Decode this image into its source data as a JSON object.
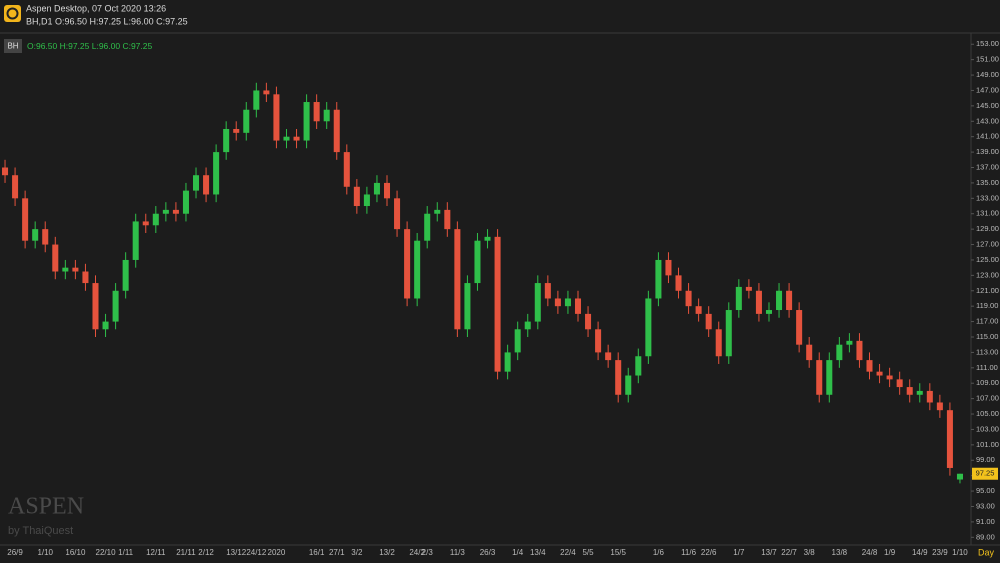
{
  "chart_data": {
    "type": "candlestick",
    "header_title": "Aspen Desktop, 07 Oct 2020 13:26",
    "header_ohlc": "BH,D1 O:96.50 H:97.25 L:96.00 C:97.25",
    "symbol_badge": "BH",
    "legend_ohlc": "O:96.50 H:97.25 L:96.00 C:97.25",
    "watermark": "ASPEN",
    "watermark_sub": "by ThaiQuest",
    "timeframe": "Day",
    "up_color": "#2fbf4a",
    "down_color": "#e5533d",
    "categories": [
      null,
      "26/9",
      null,
      null,
      "1/10",
      null,
      null,
      "16/10",
      null,
      null,
      "22/10",
      null,
      "1/11",
      null,
      null,
      "12/11",
      null,
      null,
      "21/11",
      null,
      "2/12",
      null,
      null,
      "13/12",
      null,
      "24/12",
      null,
      "2020",
      null,
      null,
      null,
      "16/1",
      null,
      "27/1",
      null,
      "3/2",
      null,
      null,
      "13/2",
      null,
      null,
      "24/2",
      "2/3",
      null,
      null,
      "11/3",
      null,
      null,
      "26/3",
      null,
      null,
      "1/4",
      null,
      "13/4",
      null,
      null,
      "22/4",
      null,
      "5/5",
      null,
      null,
      "15/5",
      null,
      null,
      null,
      "1/6",
      null,
      null,
      "11/6",
      null,
      "22/6",
      null,
      null,
      "1/7",
      null,
      null,
      "13/7",
      null,
      "22/7",
      null,
      "3/8",
      null,
      null,
      "13/8",
      null,
      null,
      "24/8",
      null,
      "1/9",
      null,
      null,
      "14/9",
      null,
      "23/9",
      null,
      "1/10"
    ],
    "open": [
      137,
      136,
      133,
      127.5,
      129,
      127,
      123.5,
      124,
      123.5,
      122,
      116,
      117,
      121,
      125,
      130,
      129.5,
      131,
      131.5,
      131,
      134,
      136,
      133.5,
      139,
      142,
      141.5,
      144.5,
      147,
      146.5,
      140.5,
      141,
      140.5,
      145.5,
      143,
      144.5,
      139,
      134.5,
      132,
      133.5,
      135,
      133,
      129,
      120,
      127.5,
      131,
      131.5,
      129,
      116,
      122,
      127.5,
      128,
      110.5,
      113,
      116,
      117,
      122,
      120,
      119,
      120,
      118,
      116,
      113,
      112,
      107.5,
      110,
      112.5,
      120,
      125,
      123,
      121,
      119,
      118,
      116,
      112.5,
      118.5,
      121.5,
      121,
      118,
      118.5,
      121,
      118.5,
      114,
      112,
      107.5,
      112,
      114,
      114.5,
      112,
      110.5,
      110,
      109.5,
      108.5,
      107.5,
      108,
      106.5,
      105.5,
      96.5
    ],
    "high": [
      138,
      137,
      134,
      130,
      130,
      128,
      125,
      125,
      124.5,
      123,
      118,
      122,
      126,
      131,
      131,
      132,
      132.5,
      132.5,
      135,
      137,
      137,
      140,
      143,
      143,
      145.5,
      148,
      148,
      147.5,
      142,
      142,
      146.5,
      146.5,
      145.5,
      145.5,
      140,
      135.5,
      134.5,
      136,
      136,
      134,
      130,
      128.5,
      132,
      132.5,
      132.5,
      130,
      123,
      128.5,
      129,
      129,
      114,
      117,
      118,
      123,
      123,
      121,
      121,
      121,
      119,
      117,
      114,
      113,
      111,
      113.5,
      121,
      126,
      126,
      124,
      122,
      120,
      119,
      117,
      119.5,
      122.5,
      122.5,
      122,
      119.5,
      122,
      122,
      119.5,
      115,
      113,
      113,
      115,
      115.5,
      115.5,
      113,
      111.5,
      111,
      110.5,
      109.5,
      109,
      109,
      107.5,
      106.5,
      97.25
    ],
    "low": [
      135,
      132,
      126.5,
      126.5,
      126,
      122.5,
      122.5,
      122.5,
      121,
      115,
      115,
      116,
      120,
      124,
      128.5,
      128.5,
      130,
      130,
      130,
      133,
      132.5,
      132.5,
      138,
      140.5,
      140.5,
      143.5,
      145.5,
      139.5,
      139.5,
      139.5,
      139.5,
      142,
      142,
      138,
      133.5,
      131,
      131,
      132.5,
      132,
      128,
      119,
      119,
      126.5,
      130,
      128,
      115,
      115,
      121,
      126.5,
      109.5,
      109.5,
      112,
      115,
      116,
      119,
      118,
      118,
      117,
      115,
      112,
      111,
      106.5,
      106.5,
      109,
      111.5,
      119,
      122,
      120,
      118,
      117,
      115,
      111.5,
      111.5,
      117.5,
      120,
      117,
      117,
      117.5,
      117.5,
      113,
      111,
      106.5,
      106.5,
      111,
      113,
      111,
      109.5,
      109,
      108.5,
      107.5,
      106.5,
      106.5,
      105.5,
      104.5,
      97,
      96
    ],
    "close": [
      136,
      133,
      127.5,
      129,
      127,
      123.5,
      124,
      123.5,
      122,
      116,
      117,
      121,
      125,
      130,
      129.5,
      131,
      131.5,
      131,
      134,
      136,
      133.5,
      139,
      142,
      141.5,
      144.5,
      147,
      146.5,
      140.5,
      141,
      140.5,
      145.5,
      143,
      144.5,
      139,
      134.5,
      132,
      133.5,
      135,
      133,
      129,
      120,
      127.5,
      131,
      131.5,
      129,
      116,
      122,
      127.5,
      128,
      110.5,
      113,
      116,
      117,
      122,
      120,
      119,
      120,
      118,
      116,
      113,
      112,
      107.5,
      110,
      112.5,
      120,
      125,
      123,
      121,
      119,
      118,
      116,
      112.5,
      118.5,
      121.5,
      121,
      118,
      118.5,
      121,
      118.5,
      114,
      112,
      107.5,
      112,
      114,
      114.5,
      112,
      110.5,
      110,
      109.5,
      108.5,
      107.5,
      108,
      106.5,
      105.5,
      98,
      97.25
    ],
    "ylim": [
      88,
      154.2
    ],
    "yticks": [
      {
        "value": 89,
        "label": "89.00"
      },
      {
        "value": 91,
        "label": "91.00"
      },
      {
        "value": 93,
        "label": "93.00"
      },
      {
        "value": 95,
        "label": "95.00"
      },
      {
        "value": 97,
        "label": "97.00"
      },
      {
        "value": 99,
        "label": "99.00"
      },
      {
        "value": 101,
        "label": "101.00"
      },
      {
        "value": 103,
        "label": "103.00"
      },
      {
        "value": 105,
        "label": "105.00"
      },
      {
        "value": 107,
        "label": "107.00"
      },
      {
        "value": 109,
        "label": "109.00"
      },
      {
        "value": 111,
        "label": "111.00"
      },
      {
        "value": 113,
        "label": "113.00"
      },
      {
        "value": 115,
        "label": "115.00"
      },
      {
        "value": 117,
        "label": "117.00"
      },
      {
        "value": 119,
        "label": "119.00"
      },
      {
        "value": 121,
        "label": "121.00"
      },
      {
        "value": 123,
        "label": "123.00"
      },
      {
        "value": 125,
        "label": "125.00"
      },
      {
        "value": 127,
        "label": "127.00"
      },
      {
        "value": 129,
        "label": "129.00"
      },
      {
        "value": 131,
        "label": "131.00"
      },
      {
        "value": 133,
        "label": "133.00"
      },
      {
        "value": 135,
        "label": "135.00"
      },
      {
        "value": 137,
        "label": "137.00"
      },
      {
        "value": 139,
        "label": "139.00"
      },
      {
        "value": 141,
        "label": "141.00"
      },
      {
        "value": 143,
        "label": "143.00"
      },
      {
        "value": 145,
        "label": "145.00"
      },
      {
        "value": 147,
        "label": "147.00"
      },
      {
        "value": 149,
        "label": "149.00"
      },
      {
        "value": 151,
        "label": "151.00"
      },
      {
        "value": 153,
        "label": "153.00"
      }
    ]
  }
}
